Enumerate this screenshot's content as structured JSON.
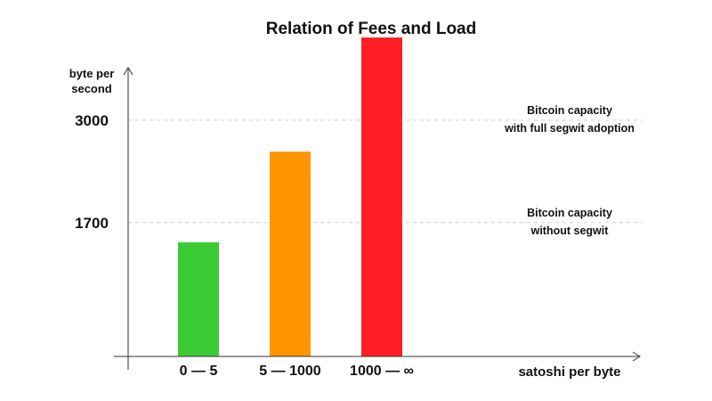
{
  "chart_data": {
    "type": "bar",
    "title": "Relation of Fees and Load",
    "xlabel": "satoshi per byte",
    "ylabel": [
      "byte per",
      "second"
    ],
    "categories": [
      "0 — 5",
      "5 — 1000",
      "1000 — ∞"
    ],
    "values": [
      1450,
      2600,
      4050
    ],
    "colors": [
      "#3bcc35",
      "#ff9500",
      "#ff1f25"
    ],
    "ylim": [
      0,
      4300
    ],
    "yticks": [
      {
        "value": 1700,
        "label": "1700"
      },
      {
        "value": 3000,
        "label": "3000"
      }
    ],
    "reference_lines": [
      {
        "value": 3000,
        "label": [
          "Bitcoin capacity",
          "with full segwit adoption"
        ],
        "style": "dashed"
      },
      {
        "value": 1700,
        "label": [
          "Bitcoin capacity",
          "without segwit"
        ],
        "style": "dashed"
      }
    ],
    "grid": false,
    "legend": "none"
  }
}
